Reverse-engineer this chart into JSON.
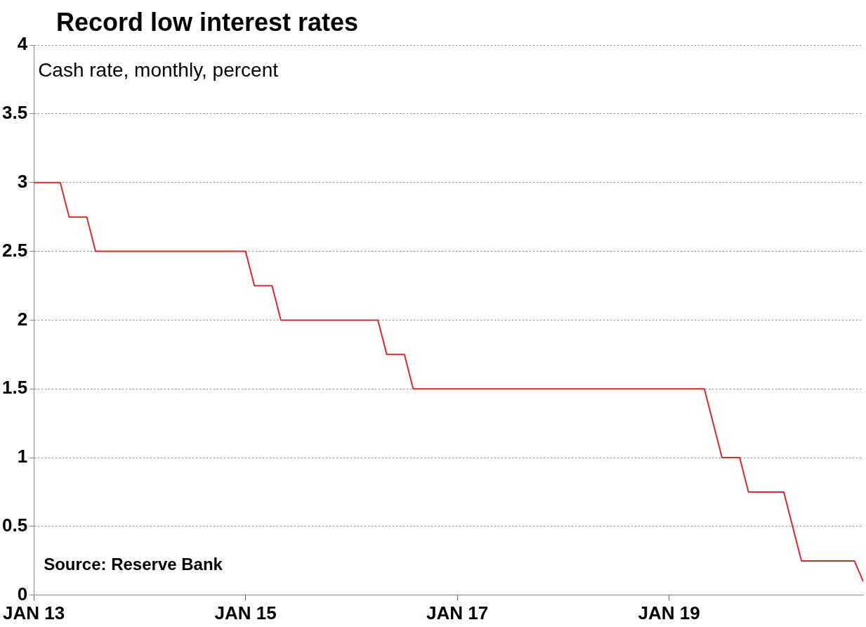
{
  "chart_data": {
    "type": "line",
    "title": "Record low interest rates",
    "subtitle": "Cash rate, monthly, percent",
    "annotations": [
      "Source: Reserve Bank"
    ],
    "x": [
      "2013-01",
      "2013-02",
      "2013-03",
      "2013-04",
      "2013-05",
      "2013-06",
      "2013-07",
      "2013-08",
      "2013-09",
      "2013-10",
      "2013-11",
      "2013-12",
      "2014-01",
      "2014-02",
      "2014-03",
      "2014-04",
      "2014-05",
      "2014-06",
      "2014-07",
      "2014-08",
      "2014-09",
      "2014-10",
      "2014-11",
      "2014-12",
      "2015-01",
      "2015-02",
      "2015-03",
      "2015-04",
      "2015-05",
      "2015-06",
      "2015-07",
      "2015-08",
      "2015-09",
      "2015-10",
      "2015-11",
      "2015-12",
      "2016-01",
      "2016-02",
      "2016-03",
      "2016-04",
      "2016-05",
      "2016-06",
      "2016-07",
      "2016-08",
      "2016-09",
      "2016-10",
      "2016-11",
      "2016-12",
      "2017-01",
      "2017-02",
      "2017-03",
      "2017-04",
      "2017-05",
      "2017-06",
      "2017-07",
      "2017-08",
      "2017-09",
      "2017-10",
      "2017-11",
      "2017-12",
      "2018-01",
      "2018-02",
      "2018-03",
      "2018-04",
      "2018-05",
      "2018-06",
      "2018-07",
      "2018-08",
      "2018-09",
      "2018-10",
      "2018-11",
      "2018-12",
      "2019-01",
      "2019-02",
      "2019-03",
      "2019-04",
      "2019-05",
      "2019-06",
      "2019-07",
      "2019-08",
      "2019-09",
      "2019-10",
      "2019-11",
      "2019-12",
      "2020-01",
      "2020-02",
      "2020-03",
      "2020-04",
      "2020-05",
      "2020-06",
      "2020-07",
      "2020-08",
      "2020-09",
      "2020-10",
      "2020-11"
    ],
    "series": [
      {
        "color": "#d42a2a",
        "values": [
          3,
          3,
          3,
          3,
          2.75,
          2.75,
          2.75,
          2.5,
          2.5,
          2.5,
          2.5,
          2.5,
          2.5,
          2.5,
          2.5,
          2.5,
          2.5,
          2.5,
          2.5,
          2.5,
          2.5,
          2.5,
          2.5,
          2.5,
          2.5,
          2.25,
          2.25,
          2.25,
          2,
          2,
          2,
          2,
          2,
          2,
          2,
          2,
          2,
          2,
          2,
          2,
          1.75,
          1.75,
          1.75,
          1.5,
          1.5,
          1.5,
          1.5,
          1.5,
          1.5,
          1.5,
          1.5,
          1.5,
          1.5,
          1.5,
          1.5,
          1.5,
          1.5,
          1.5,
          1.5,
          1.5,
          1.5,
          1.5,
          1.5,
          1.5,
          1.5,
          1.5,
          1.5,
          1.5,
          1.5,
          1.5,
          1.5,
          1.5,
          1.5,
          1.5,
          1.5,
          1.5,
          1.5,
          1.25,
          1,
          1,
          1,
          0.75,
          0.75,
          0.75,
          0.75,
          0.75,
          0.5,
          0.25,
          0.25,
          0.25,
          0.25,
          0.25,
          0.25,
          0.25,
          0.1
        ]
      }
    ],
    "xlim": [
      "2013-01",
      "2020-11"
    ],
    "xticks": [
      {
        "value": "2013-01",
        "label": "JAN 13"
      },
      {
        "value": "2015-01",
        "label": "JAN 15"
      },
      {
        "value": "2017-01",
        "label": "JAN 17"
      },
      {
        "value": "2019-01",
        "label": "JAN 19"
      }
    ],
    "ylim": [
      0,
      4
    ],
    "yticks": [
      0,
      0.5,
      1,
      1.5,
      2,
      2.5,
      3,
      3.5,
      4
    ],
    "grid": "y",
    "legend": false,
    "line_style": "solid"
  }
}
